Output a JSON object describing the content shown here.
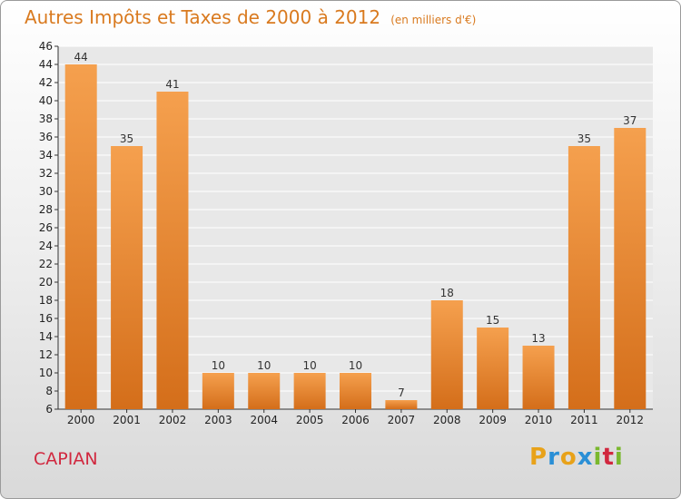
{
  "title": "Autres Impôts et Taxes de 2000 à 2012",
  "title_unit": "(en milliers d'€)",
  "commune": "CAPIAN",
  "logo": "Proxiti",
  "colors": {
    "bar_light": "#f5a04e",
    "bar_dark": "#d46e1a",
    "title": "#d97a1f",
    "commune": "#d1283f"
  },
  "chart_data": {
    "type": "bar",
    "categories": [
      "2000",
      "2001",
      "2002",
      "2003",
      "2004",
      "2005",
      "2006",
      "2007",
      "2008",
      "2009",
      "2010",
      "2011",
      "2012"
    ],
    "values": [
      44,
      35,
      41,
      10,
      10,
      10,
      10,
      7,
      18,
      15,
      13,
      35,
      37
    ],
    "ylim": [
      6,
      46
    ],
    "yticks": [
      6,
      8,
      10,
      12,
      14,
      16,
      18,
      20,
      22,
      24,
      26,
      28,
      30,
      32,
      34,
      36,
      38,
      40,
      42,
      44,
      46
    ],
    "grid": true
  }
}
